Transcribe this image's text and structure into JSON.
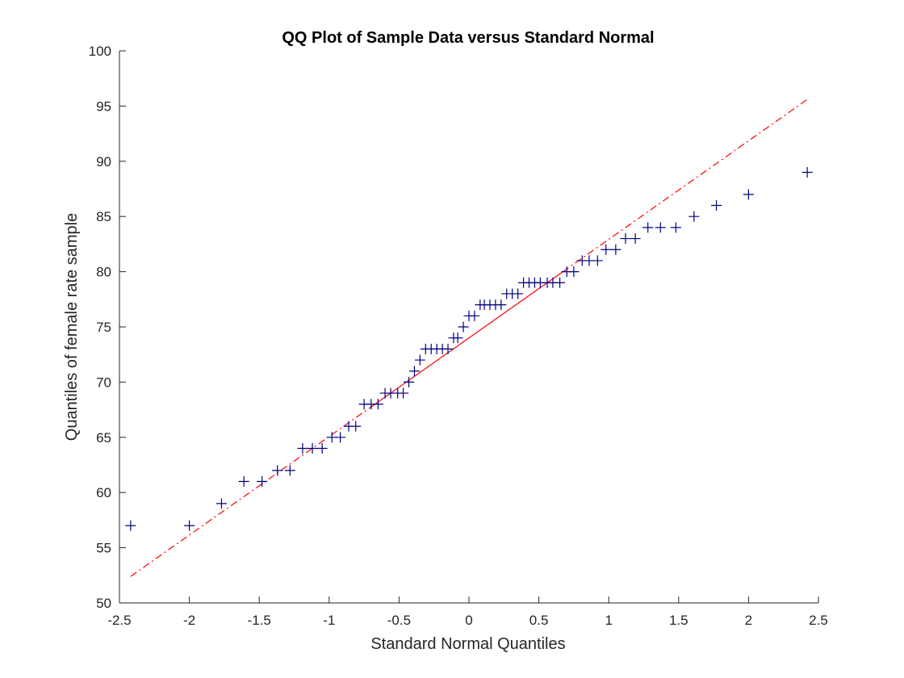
{
  "chart_data": {
    "type": "scatter",
    "title": "QQ Plot of Sample Data versus Standard Normal",
    "xlabel": "Standard Normal Quantiles",
    "ylabel": "Quantiles of female rate sample",
    "xlim": [
      -2.5,
      2.5
    ],
    "ylim": [
      50,
      100
    ],
    "xticks": [
      "-2.5",
      "-2",
      "-1.5",
      "-1",
      "-0.5",
      "0",
      "0.5",
      "1",
      "1.5",
      "2",
      "2.5"
    ],
    "yticks": [
      "50",
      "55",
      "60",
      "65",
      "70",
      "75",
      "80",
      "85",
      "90",
      "95",
      "100"
    ],
    "grid": false,
    "marker_color": "#000080",
    "line_color": "#ff0000",
    "points": [
      [
        -2.42,
        57
      ],
      [
        -2.0,
        57
      ],
      [
        -1.77,
        59
      ],
      [
        -1.61,
        61
      ],
      [
        -1.48,
        61
      ],
      [
        -1.37,
        62
      ],
      [
        -1.28,
        62
      ],
      [
        -1.19,
        64
      ],
      [
        -1.12,
        64
      ],
      [
        -1.05,
        64
      ],
      [
        -0.98,
        65
      ],
      [
        -0.92,
        65
      ],
      [
        -0.86,
        66
      ],
      [
        -0.81,
        66
      ],
      [
        -0.75,
        68
      ],
      [
        -0.7,
        68
      ],
      [
        -0.65,
        68
      ],
      [
        -0.6,
        69
      ],
      [
        -0.56,
        69
      ],
      [
        -0.51,
        69
      ],
      [
        -0.47,
        69
      ],
      [
        -0.43,
        70
      ],
      [
        -0.39,
        71
      ],
      [
        -0.35,
        72
      ],
      [
        -0.31,
        73
      ],
      [
        -0.27,
        73
      ],
      [
        -0.23,
        73
      ],
      [
        -0.19,
        73
      ],
      [
        -0.15,
        73
      ],
      [
        -0.11,
        74
      ],
      [
        -0.08,
        74
      ],
      [
        -0.04,
        75
      ],
      [
        0.0,
        76
      ],
      [
        0.04,
        76
      ],
      [
        0.08,
        77
      ],
      [
        0.11,
        77
      ],
      [
        0.15,
        77
      ],
      [
        0.19,
        77
      ],
      [
        0.23,
        77
      ],
      [
        0.27,
        78
      ],
      [
        0.31,
        78
      ],
      [
        0.35,
        78
      ],
      [
        0.39,
        79
      ],
      [
        0.43,
        79
      ],
      [
        0.47,
        79
      ],
      [
        0.51,
        79
      ],
      [
        0.56,
        79
      ],
      [
        0.6,
        79
      ],
      [
        0.65,
        79
      ],
      [
        0.7,
        80
      ],
      [
        0.75,
        80
      ],
      [
        0.81,
        81
      ],
      [
        0.86,
        81
      ],
      [
        0.92,
        81
      ],
      [
        0.98,
        82
      ],
      [
        1.05,
        82
      ],
      [
        1.12,
        83
      ],
      [
        1.19,
        83
      ],
      [
        1.28,
        84
      ],
      [
        1.37,
        84
      ],
      [
        1.48,
        84
      ],
      [
        1.61,
        85
      ],
      [
        1.77,
        86
      ],
      [
        2.0,
        87
      ],
      [
        2.42,
        89
      ]
    ],
    "reference_line": {
      "style": "solid between first and third quartiles, dash-dot extrapolation",
      "x": [
        -2.42,
        2.42
      ],
      "y": [
        52.4,
        95.6
      ],
      "solid_x": [
        -0.67,
        0.67
      ]
    }
  }
}
